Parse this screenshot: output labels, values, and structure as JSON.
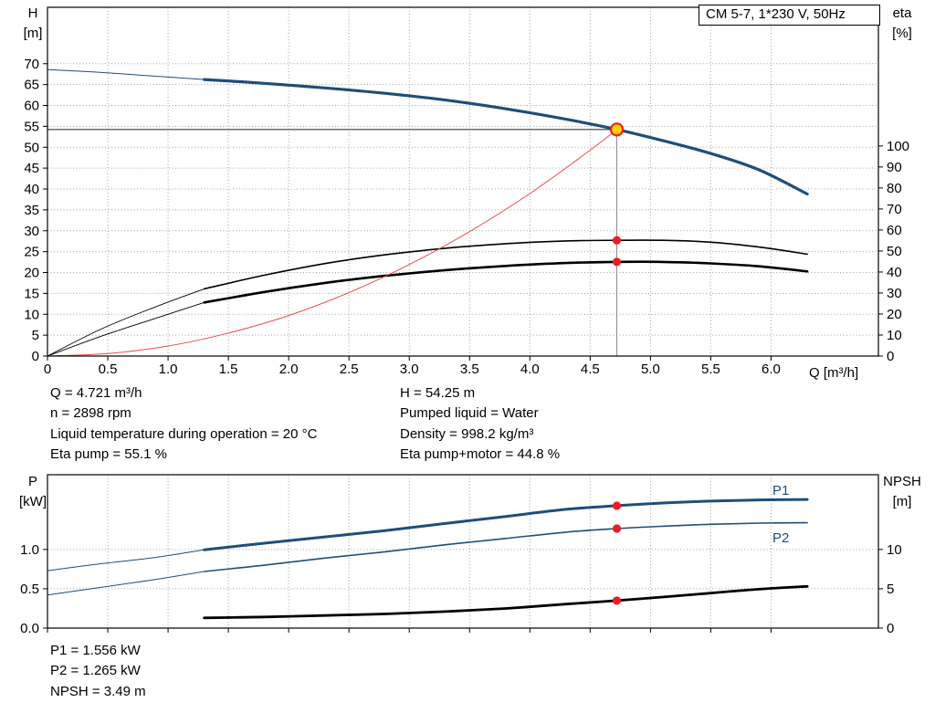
{
  "legend": {
    "label": "CM 5-7, 1*230 V, 50Hz"
  },
  "axes": {
    "top": {
      "left_title": "H",
      "left_unit": "[m]",
      "right_title": "eta",
      "right_unit": "[%]",
      "x_label": "Q [m³/h]"
    },
    "bottom": {
      "left_title": "P",
      "left_unit": "[kW]",
      "right_title": "NPSH",
      "right_unit": "[m]"
    }
  },
  "curve_labels": {
    "p1": "P1",
    "p2": "P2"
  },
  "top_info": {
    "left": [
      "Q = 4.721 m³/h",
      "n = 2898 rpm",
      "Liquid temperature during operation = 20 °C",
      "Eta pump = 55.1 %"
    ],
    "right": [
      "H = 54.25 m",
      "Pumped liquid = Water",
      "Density = 998.2 kg/m³",
      "Eta pump+motor = 44.8 %"
    ]
  },
  "bottom_info": [
    "P1 = 1.556 kW",
    "P2 = 1.265 kW",
    "NPSH = 3.49 m"
  ],
  "chart_data": [
    {
      "type": "line",
      "title": "CM 5-7, 1*230 V, 50Hz",
      "xlabel": "Q [m³/h]",
      "ylabel_left": "H [m]",
      "ylabel_right": "eta [%]",
      "xlim": [
        0,
        6.89
      ],
      "ylim_left": [
        0,
        83.5
      ],
      "ylim_right": [
        0,
        166
      ],
      "grid": true,
      "legend_position": "top-right",
      "x_ticks": {
        "values": [
          0,
          0.5,
          1,
          1.5,
          2,
          2.5,
          3,
          3.5,
          4,
          4.5,
          5,
          5.5,
          6
        ],
        "labels": [
          "0",
          "0.5",
          "1.0",
          "1.5",
          "2.0",
          "2.5",
          "3.0",
          "3.5",
          "4.0",
          "4.5",
          "5.0",
          "5.5",
          "6.0"
        ]
      },
      "left_ticks": {
        "values": [
          0,
          5,
          10,
          15,
          20,
          25,
          30,
          35,
          40,
          45,
          50,
          55,
          60,
          65,
          70
        ],
        "labels": [
          "0",
          "5",
          "10",
          "15",
          "20",
          "25",
          "30",
          "35",
          "40",
          "45",
          "50",
          "55",
          "60",
          "65",
          "70"
        ]
      },
      "right_ticks": {
        "values": [
          0,
          10,
          20,
          30,
          40,
          50,
          60,
          70,
          80,
          90,
          100
        ],
        "labels": [
          "0",
          "10",
          "20",
          "30",
          "40",
          "50",
          "60",
          "70",
          "80",
          "90",
          "100"
        ]
      },
      "series": [
        {
          "name": "hq-curve-lead",
          "axis": "left",
          "color": "#1f4e79",
          "width": 1,
          "x": [
            0,
            0.45,
            0.9,
            1.3
          ],
          "y": [
            68.6,
            67.9,
            67.0,
            66.2
          ]
        },
        {
          "name": "hq-curve",
          "axis": "left",
          "color": "#1f4e79",
          "width": 3.2,
          "x": [
            1.3,
            1.8,
            2.3,
            2.8,
            3.3,
            3.8,
            4.3,
            4.721,
            5.1,
            5.5,
            5.9,
            6.3
          ],
          "y": [
            66.2,
            65.3,
            64.2,
            62.9,
            61.3,
            59.2,
            56.7,
            54.25,
            51.6,
            48.5,
            44.6,
            38.8
          ]
        },
        {
          "name": "eta-pump-curve-lead",
          "axis": "right",
          "color": "#000000",
          "width": 0.9,
          "x": [
            0,
            0.45,
            0.9,
            1.3
          ],
          "y": [
            0,
            13,
            23.5,
            32
          ]
        },
        {
          "name": "eta-pump-curve",
          "axis": "right",
          "color": "#000000",
          "width": 1.6,
          "x": [
            1.3,
            1.8,
            2.3,
            2.8,
            3.3,
            3.8,
            4.3,
            4.721,
            5.1,
            5.5,
            5.9,
            6.3
          ],
          "y": [
            32,
            38.5,
            44,
            48.2,
            51.3,
            53.5,
            54.8,
            55.1,
            55.1,
            54.2,
            51.9,
            48.5
          ]
        },
        {
          "name": "eta-pump-motor-curve-lead",
          "axis": "right",
          "color": "#000000",
          "width": 0.9,
          "x": [
            0,
            0.45,
            0.9,
            1.3
          ],
          "y": [
            0,
            9.5,
            18,
            25.5
          ]
        },
        {
          "name": "eta-pump-motor-curve",
          "axis": "right",
          "color": "#000000",
          "width": 2.6,
          "x": [
            1.3,
            1.8,
            2.3,
            2.8,
            3.3,
            3.8,
            4.3,
            4.721,
            5.1,
            5.5,
            5.9,
            6.3
          ],
          "y": [
            25.5,
            30.5,
            34.8,
            38.2,
            40.9,
            42.9,
            44.3,
            44.8,
            44.8,
            44.1,
            42.7,
            40.3
          ]
        },
        {
          "name": "system-curve",
          "axis": "left",
          "color": "#e84c4c",
          "width": 1,
          "x": [
            0,
            0.5,
            1,
            1.5,
            2,
            2.5,
            3,
            3.5,
            4,
            4.5,
            4.721
          ],
          "y": [
            0,
            0.6,
            2.4,
            5.5,
            9.7,
            15.2,
            21.9,
            29.8,
            38.9,
            49.3,
            54.25
          ]
        }
      ],
      "crosshair": {
        "h_value": 54.25,
        "h_from": 0,
        "h_to": 4.721,
        "v_value": 4.721,
        "v_from": 0,
        "v_to": 54.25
      },
      "duty_point": {
        "x": 4.721,
        "y": 54.25,
        "fill": "#ffd400",
        "stroke": "#ee1c25"
      },
      "dots": [
        {
          "x": 4.721,
          "y": 55.1,
          "axis": "right"
        },
        {
          "x": 4.721,
          "y": 44.8,
          "axis": "right"
        }
      ],
      "dot_color": "#ee1c25"
    },
    {
      "type": "line",
      "title": "",
      "xlabel": "",
      "ylabel_left": "P [kW]",
      "ylabel_right": "NPSH [m]",
      "xlim": [
        0,
        6.89
      ],
      "ylim_left": [
        0,
        1.95
      ],
      "ylim_right": [
        0,
        19.5
      ],
      "grid": true,
      "x_ticks": {
        "values": [
          0,
          0.5,
          1,
          1.5,
          2,
          2.5,
          3,
          3.5,
          4,
          4.5,
          5,
          5.5,
          6
        ],
        "labels": [
          "",
          "",
          "",
          "",
          "",
          "",
          "",
          "",
          "",
          "",
          "",
          "",
          ""
        ]
      },
      "left_ticks": {
        "values": [
          0,
          0.5,
          1
        ],
        "labels": [
          "0.0",
          "0.5",
          "1.0"
        ]
      },
      "right_ticks": {
        "values": [
          0,
          5,
          10
        ],
        "labels": [
          "0",
          "5",
          "10"
        ]
      },
      "series": [
        {
          "name": "p1-curve-lead",
          "axis": "left",
          "color": "#1f4e79",
          "width": 1,
          "x": [
            0,
            0.45,
            0.9,
            1.3
          ],
          "y": [
            0.73,
            0.82,
            0.9,
            0.995
          ]
        },
        {
          "name": "p1-curve",
          "axis": "left",
          "color": "#1f4e79",
          "width": 3,
          "x": [
            1.3,
            1.8,
            2.3,
            2.8,
            3.3,
            3.8,
            4.3,
            4.721,
            5.1,
            5.5,
            5.9,
            6.3
          ],
          "y": [
            0.995,
            1.08,
            1.16,
            1.24,
            1.33,
            1.42,
            1.51,
            1.556,
            1.59,
            1.615,
            1.63,
            1.635
          ]
        },
        {
          "name": "p2-curve-lead",
          "axis": "left",
          "color": "#1f4e79",
          "width": 1,
          "x": [
            0,
            0.45,
            0.9,
            1.3
          ],
          "y": [
            0.42,
            0.52,
            0.62,
            0.72
          ]
        },
        {
          "name": "p2-curve",
          "axis": "left",
          "color": "#1f4e79",
          "width": 1.6,
          "x": [
            1.3,
            1.8,
            2.3,
            2.8,
            3.3,
            3.8,
            4.3,
            4.721,
            5.1,
            5.5,
            5.9,
            6.3
          ],
          "y": [
            0.72,
            0.8,
            0.89,
            0.97,
            1.06,
            1.14,
            1.22,
            1.265,
            1.295,
            1.32,
            1.335,
            1.34
          ]
        },
        {
          "name": "npsh-curve",
          "axis": "right",
          "color": "#000000",
          "width": 2.8,
          "x": [
            1.3,
            1.8,
            2.3,
            2.8,
            3.3,
            3.8,
            4.3,
            4.721,
            5.1,
            5.5,
            5.9,
            6.3
          ],
          "y": [
            1.3,
            1.42,
            1.6,
            1.8,
            2.1,
            2.5,
            3.05,
            3.49,
            3.95,
            4.45,
            4.95,
            5.3
          ]
        }
      ],
      "dots": [
        {
          "x": 4.721,
          "y": 1.556,
          "axis": "left"
        },
        {
          "x": 4.721,
          "y": 1.265,
          "axis": "left"
        },
        {
          "x": 4.721,
          "y": 3.49,
          "axis": "right"
        }
      ],
      "dot_color": "#ee1c25"
    }
  ]
}
